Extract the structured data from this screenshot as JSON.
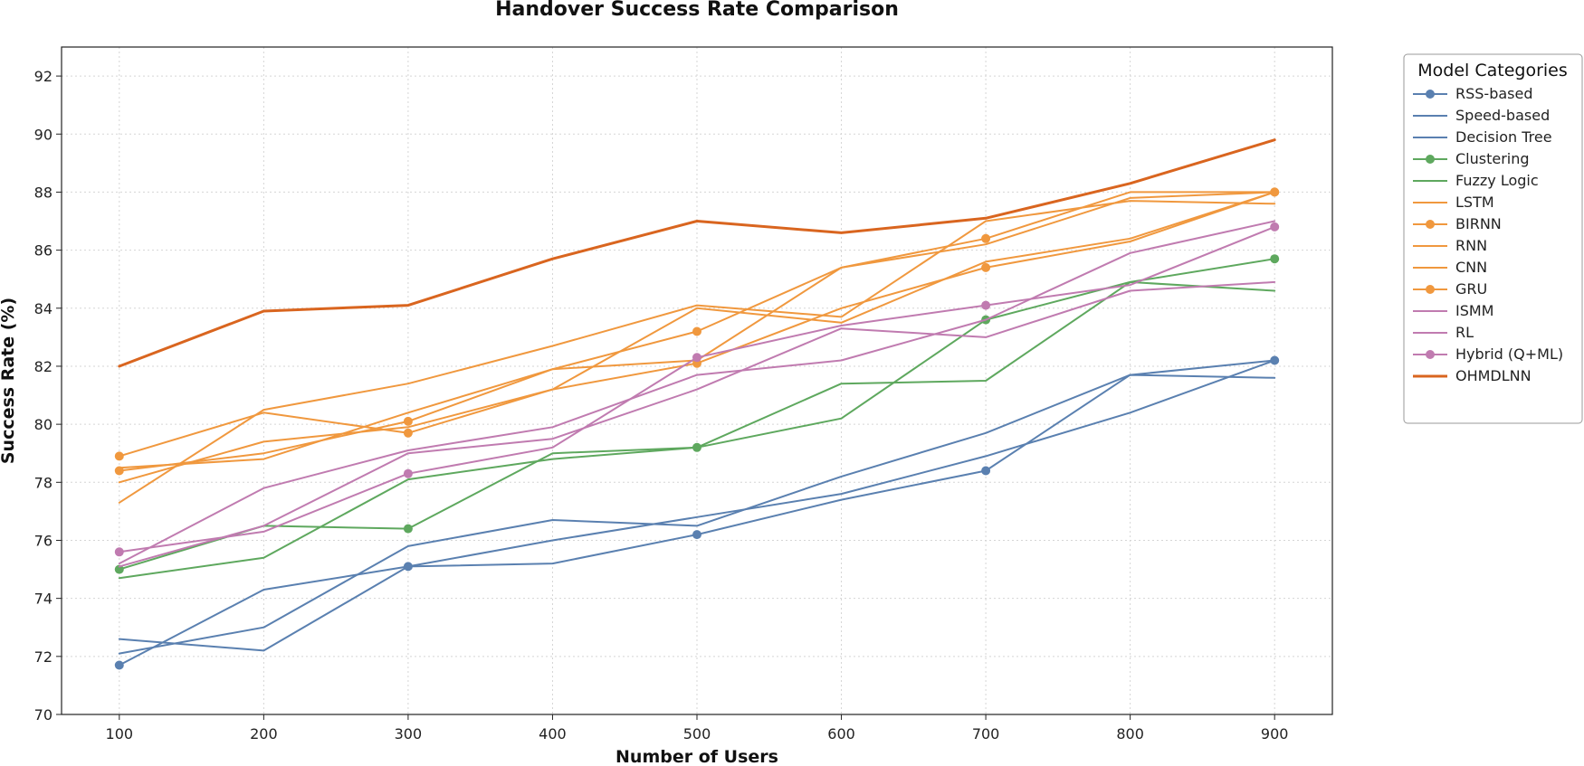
{
  "chart_data": {
    "type": "line",
    "title": "Handover Success Rate Comparison",
    "xlabel": "Number of Users",
    "ylabel": "Success Rate (%)",
    "x": [
      100,
      200,
      300,
      400,
      500,
      600,
      700,
      800,
      900
    ],
    "xlim": [
      60,
      940
    ],
    "ylim": [
      70,
      93
    ],
    "xticks": [
      100,
      200,
      300,
      400,
      500,
      600,
      700,
      800,
      900
    ],
    "yticks": [
      70,
      72,
      74,
      76,
      78,
      80,
      82,
      84,
      86,
      88,
      90,
      92
    ],
    "grid": true,
    "legend": {
      "title": "Model Categories",
      "position": "outside-right"
    },
    "series": [
      {
        "name": "RSS-based",
        "color": "#5a80b0",
        "marker": true,
        "values": [
          71.7,
          74.3,
          75.1,
          75.2,
          76.2,
          77.4,
          78.4,
          81.7,
          82.2
        ]
      },
      {
        "name": "Speed-based",
        "color": "#5a80b0",
        "marker": false,
        "values": [
          72.1,
          73.0,
          75.8,
          76.7,
          76.5,
          78.2,
          79.7,
          81.7,
          81.6
        ]
      },
      {
        "name": "Decision Tree",
        "color": "#5a80b0",
        "marker": false,
        "values": [
          72.6,
          72.2,
          75.1,
          76.0,
          76.8,
          77.6,
          78.9,
          80.4,
          82.2
        ]
      },
      {
        "name": "Clustering",
        "color": "#5ea85e",
        "marker": true,
        "values": [
          75.0,
          76.5,
          76.4,
          79.0,
          79.2,
          80.2,
          83.6,
          84.9,
          85.7
        ]
      },
      {
        "name": "Fuzzy Logic",
        "color": "#5ea85e",
        "marker": false,
        "values": [
          74.7,
          75.4,
          78.1,
          78.8,
          79.2,
          81.4,
          81.5,
          84.9,
          84.6
        ]
      },
      {
        "name": "LSTM",
        "color": "#f0983e",
        "marker": false,
        "values": [
          77.3,
          80.5,
          81.4,
          82.7,
          84.1,
          83.7,
          87.0,
          87.7,
          87.6
        ]
      },
      {
        "name": "BIRNN",
        "color": "#f0983e",
        "marker": true,
        "values": [
          78.4,
          79.0,
          80.1,
          81.9,
          83.2,
          85.4,
          86.4,
          88.0,
          88.0
        ]
      },
      {
        "name": "RNN",
        "color": "#f0983e",
        "marker": false,
        "values": [
          78.0,
          79.4,
          79.9,
          81.2,
          84.0,
          83.5,
          85.6,
          86.4,
          88.0
        ]
      },
      {
        "name": "CNN",
        "color": "#f0983e",
        "marker": false,
        "values": [
          78.5,
          78.8,
          80.4,
          81.9,
          82.2,
          85.4,
          86.2,
          87.8,
          88.0
        ]
      },
      {
        "name": "GRU",
        "color": "#f0983e",
        "marker": true,
        "values": [
          78.9,
          80.4,
          79.7,
          81.2,
          82.1,
          84.0,
          85.4,
          86.3,
          88.0
        ]
      },
      {
        "name": "ISMM",
        "color": "#c07bb0",
        "marker": false,
        "values": [
          75.2,
          77.8,
          79.1,
          79.9,
          81.7,
          82.2,
          83.6,
          85.9,
          87.0
        ]
      },
      {
        "name": "RL",
        "color": "#c07bb0",
        "marker": false,
        "values": [
          75.1,
          76.5,
          79.0,
          79.5,
          81.2,
          83.3,
          83.0,
          84.6,
          84.9
        ]
      },
      {
        "name": "Hybrid (Q+ML)",
        "color": "#c07bb0",
        "marker": true,
        "values": [
          75.6,
          76.3,
          78.3,
          79.2,
          82.3,
          83.4,
          84.1,
          84.8,
          86.8
        ]
      },
      {
        "name": "OHMDLNN",
        "color": "#d9651f",
        "marker": false,
        "bold": true,
        "values": [
          82.0,
          83.9,
          84.1,
          85.7,
          87.0,
          86.6,
          87.1,
          88.3,
          89.8
        ]
      }
    ]
  }
}
